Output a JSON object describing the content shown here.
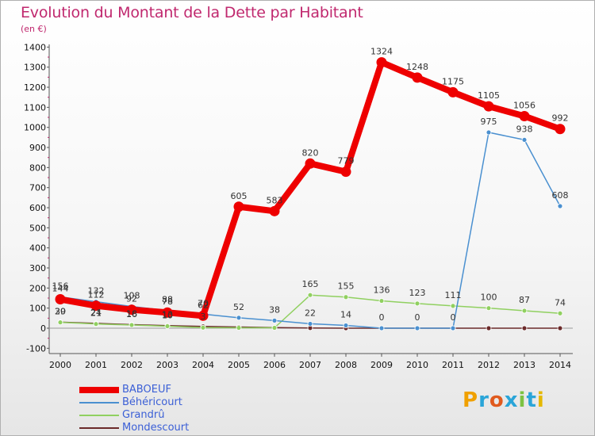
{
  "title": "Evolution du Montant de la Dette par Habitant",
  "subtitle": "(en €)",
  "logo": {
    "letters": [
      "P",
      "r",
      "o",
      "x",
      "i",
      "t",
      "i"
    ],
    "colors": [
      "#f0a000",
      "#2aa5d8",
      "#e05a1e",
      "#2aa5d8",
      "#7cc242",
      "#2aa5d8",
      "#e5b800"
    ]
  },
  "chart_data": {
    "type": "line",
    "title": "Evolution du Montant de la Dette par Habitant",
    "ylabel": "(en €)",
    "x": [
      "2000",
      "2001",
      "2002",
      "2003",
      "2004",
      "2005",
      "2006",
      "2007",
      "2008",
      "2009",
      "2010",
      "2011",
      "2012",
      "2013",
      "2014"
    ],
    "ylim": [
      -100,
      1400
    ],
    "yticks": [
      "-100",
      "0",
      "100",
      "200",
      "300",
      "400",
      "500",
      "600",
      "700",
      "800",
      "900",
      "1000",
      "1100",
      "1200",
      "1300",
      "1400"
    ],
    "grid": false,
    "legend": "bottom-left",
    "series": [
      {
        "name": "BABOEUF",
        "color": "#ee0000",
        "values": [
          144,
          112,
          92,
          78,
          62,
          605,
          583,
          820,
          779,
          1324,
          1248,
          1175,
          1105,
          1056,
          992
        ],
        "labels": [
          "144",
          "112",
          "92",
          "78",
          "62",
          "605",
          "583",
          "820",
          "779",
          "1324",
          "1248",
          "1175",
          "1105",
          "1056",
          "992"
        ]
      },
      {
        "name": "Béhéricourt",
        "color": "#4a90d0",
        "values": [
          156,
          132,
          108,
          88,
          70,
          52,
          38,
          22,
          14,
          0,
          0,
          0,
          975,
          938,
          608
        ],
        "labels": [
          "156",
          "132",
          "108",
          "88",
          "70",
          "52",
          "38",
          "22",
          "14",
          "0",
          "0",
          "0",
          "975",
          "938",
          "608"
        ]
      },
      {
        "name": "Grandrû",
        "color": "#90d060",
        "values": [
          29,
          21,
          16,
          10,
          3,
          2,
          2,
          165,
          155,
          136,
          123,
          111,
          100,
          87,
          74
        ],
        "labels": [
          "29",
          "21",
          "16",
          "10",
          "3",
          "",
          "",
          "165",
          "155",
          "136",
          "123",
          "111",
          "100",
          "87",
          "74"
        ]
      },
      {
        "name": "Mondescourt",
        "color": "#6b2a2a",
        "values": [
          30,
          24,
          18,
          13,
          9,
          6,
          3,
          1,
          0,
          0,
          0,
          0,
          0,
          0,
          0
        ],
        "labels": [
          "30",
          "24",
          "18",
          "13",
          "",
          "",
          "",
          "",
          "",
          "",
          "",
          "",
          "",
          "",
          ""
        ]
      }
    ]
  }
}
